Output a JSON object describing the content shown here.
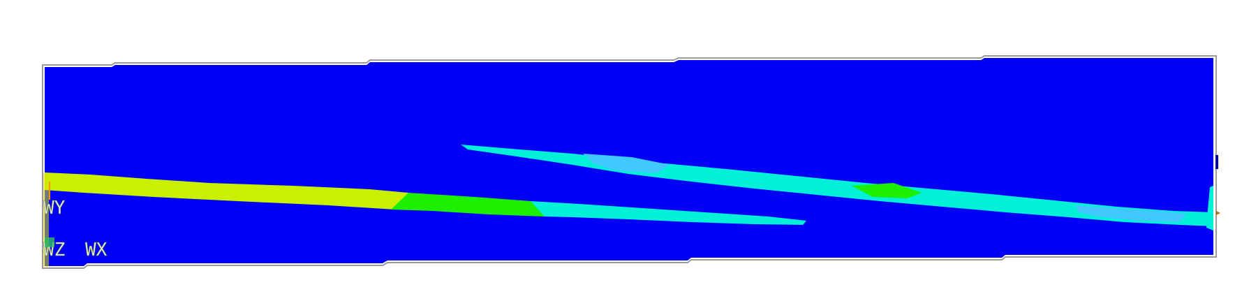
{
  "viewport": {
    "background": "#ffffff",
    "outline_color": "#9a9a9a"
  },
  "contour": {
    "base_color": "#0000f5",
    "band_colors": {
      "yellow_green": "#c8f000",
      "green": "#1cf000",
      "cyan": "#00f0d8",
      "light_blue": "#40c8ff"
    }
  },
  "triad": {
    "y_label": "WY",
    "z_label": "WZ",
    "x_label": "WX"
  }
}
